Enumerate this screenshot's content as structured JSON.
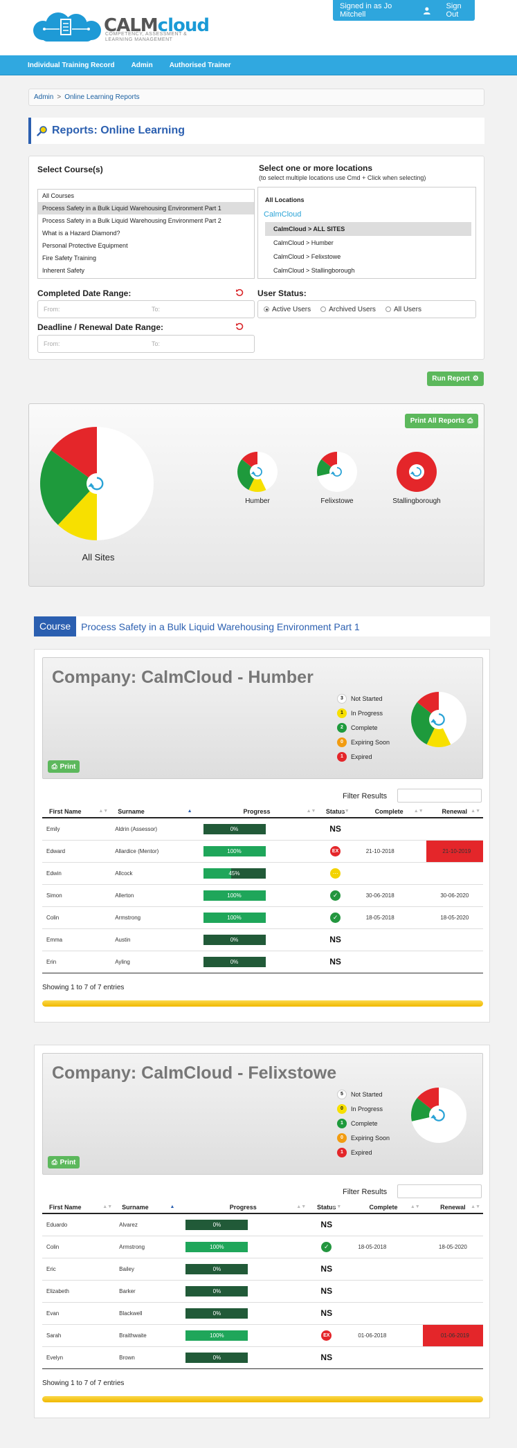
{
  "header": {
    "logo_main": "CALM",
    "logo_accent": "cloud",
    "logo_tagline": "Competency, Assessment & Learning Management",
    "signed_in": "Signed in as Jo Mitchell",
    "sign_out": "Sign Out"
  },
  "nav": [
    "Individual Training Record",
    "Admin",
    "Authorised Trainer"
  ],
  "breadcrumb": {
    "root": "Admin",
    "sep": ">",
    "current": "Online Learning Reports"
  },
  "page_title": "Reports: Online Learning",
  "filters": {
    "course_heading": "Select Course(s)",
    "courses": [
      "All Courses",
      "Process Safety in a Bulk Liquid Warehousing Environment Part 1",
      "Process Safety in a Bulk Liquid Warehousing Environment Part 2",
      "What is a Hazard Diamond?",
      "Personal Protective Equipment",
      "Fire Safety Training",
      "Inherent Safety"
    ],
    "location_heading": "Select one or more locations",
    "location_hint": "(to select multiple locations use Cmd + Click when selecting)",
    "locations": {
      "all": "All Locations",
      "group": "CalmCloud",
      "items": [
        "CalmCloud > ALL SITES",
        "CalmCloud > Humber",
        "CalmCloud > Felixstowe",
        "CalmCloud > Stallingborough"
      ]
    },
    "completed_label": "Completed Date Range:",
    "deadline_label": "Deadline / Renewal Date Range:",
    "from_placeholder": "From:",
    "to_placeholder": "To:",
    "user_status_label": "User Status:",
    "user_status_options": [
      "Active Users",
      "Archived Users",
      "All Users"
    ]
  },
  "run_report": "Run Report",
  "print_all": "Print All Reports",
  "summary_labels": {
    "all": "All Sites",
    "humber": "Humber",
    "felixstowe": "Felixstowe",
    "stallingborough": "Stallingborough"
  },
  "colors": {
    "not_started": "#ffffff",
    "in_progress": "#f7e000",
    "complete": "#1e9a3c",
    "expiring": "#f29c11",
    "expired": "#e4262a"
  },
  "course": {
    "tag": "Course",
    "title": "Process Safety in a Bulk Liquid Warehousing Environment Part 1"
  },
  "table_headers": [
    "First Name",
    "Surname",
    "Progress",
    "Status",
    "Complete",
    "Renewal"
  ],
  "filter_label": "Filter Results",
  "print_label": "Print",
  "legend_labels": [
    "Not Started",
    "In Progress",
    "Complete",
    "Expiring Soon",
    "Expired"
  ],
  "companies": [
    {
      "title": "Company: CalmCloud - Humber",
      "legend_counts": [
        "3",
        "1",
        "2",
        "0",
        "1"
      ],
      "rows": [
        {
          "first": "Emily",
          "surname": "Aldrin (Assessor)",
          "progress": "0%",
          "status": "NS",
          "complete": "",
          "renewal": ""
        },
        {
          "first": "Edward",
          "surname": "Allardice (Mentor)",
          "progress": "100%",
          "status": "EX",
          "complete": "21-10-2018",
          "renewal": "21-10-2019"
        },
        {
          "first": "Edwin",
          "surname": "Allcock",
          "progress": "45%",
          "status": "IP",
          "complete": "",
          "renewal": ""
        },
        {
          "first": "Simon",
          "surname": "Allerton",
          "progress": "100%",
          "status": "OK",
          "complete": "30-06-2018",
          "renewal": "30-06-2020"
        },
        {
          "first": "Colin",
          "surname": "Armstrong",
          "progress": "100%",
          "status": "OK",
          "complete": "18-05-2018",
          "renewal": "18-05-2020"
        },
        {
          "first": "Emma",
          "surname": "Austin",
          "progress": "0%",
          "status": "NS",
          "complete": "",
          "renewal": ""
        },
        {
          "first": "Erin",
          "surname": "Ayling",
          "progress": "0%",
          "status": "NS",
          "complete": "",
          "renewal": ""
        }
      ],
      "showing": "Showing 1 to 7 of 7 entries"
    },
    {
      "title": "Company: CalmCloud - Felixstowe",
      "legend_counts": [
        "5",
        "0",
        "1",
        "0",
        "1"
      ],
      "rows": [
        {
          "first": "Eduardo",
          "surname": "Alvarez",
          "progress": "0%",
          "status": "NS",
          "complete": "",
          "renewal": ""
        },
        {
          "first": "Colin",
          "surname": "Armstrong",
          "progress": "100%",
          "status": "OK",
          "complete": "18-05-2018",
          "renewal": "18-05-2020"
        },
        {
          "first": "Eric",
          "surname": "Bailey",
          "progress": "0%",
          "status": "NS",
          "complete": "",
          "renewal": ""
        },
        {
          "first": "Elizabeth",
          "surname": "Barker",
          "progress": "0%",
          "status": "NS",
          "complete": "",
          "renewal": ""
        },
        {
          "first": "Evan",
          "surname": "Blackwell",
          "progress": "0%",
          "status": "NS",
          "complete": "",
          "renewal": ""
        },
        {
          "first": "Sarah",
          "surname": "Braithwaite",
          "progress": "100%",
          "status": "EX",
          "complete": "01-06-2018",
          "renewal": "01-06-2019"
        },
        {
          "first": "Evelyn",
          "surname": "Brown",
          "progress": "0%",
          "status": "NS",
          "complete": "",
          "renewal": ""
        }
      ],
      "showing": "Showing 1 to 7 of 7 entries"
    }
  ],
  "chart_data": [
    {
      "type": "pie",
      "label": "All Sites",
      "series": [
        {
          "name": "Expired",
          "values": [
            15
          ]
        },
        {
          "name": "Complete",
          "values": [
            23
          ]
        },
        {
          "name": "In Progress",
          "values": [
            12
          ]
        },
        {
          "name": "Not Started",
          "values": [
            50
          ]
        }
      ]
    },
    {
      "type": "pie",
      "label": "Humber",
      "values": {
        "not_started": 3,
        "in_progress": 1,
        "complete": 2,
        "expiring": 0,
        "expired": 1
      }
    },
    {
      "type": "pie",
      "label": "Felixstowe",
      "values": {
        "not_started": 5,
        "in_progress": 0,
        "complete": 1,
        "expiring": 0,
        "expired": 1
      }
    },
    {
      "type": "pie",
      "label": "Stallingborough",
      "values": {
        "not_started": 0,
        "in_progress": 0,
        "complete": 0,
        "expiring": 0,
        "expired": 1
      }
    }
  ]
}
